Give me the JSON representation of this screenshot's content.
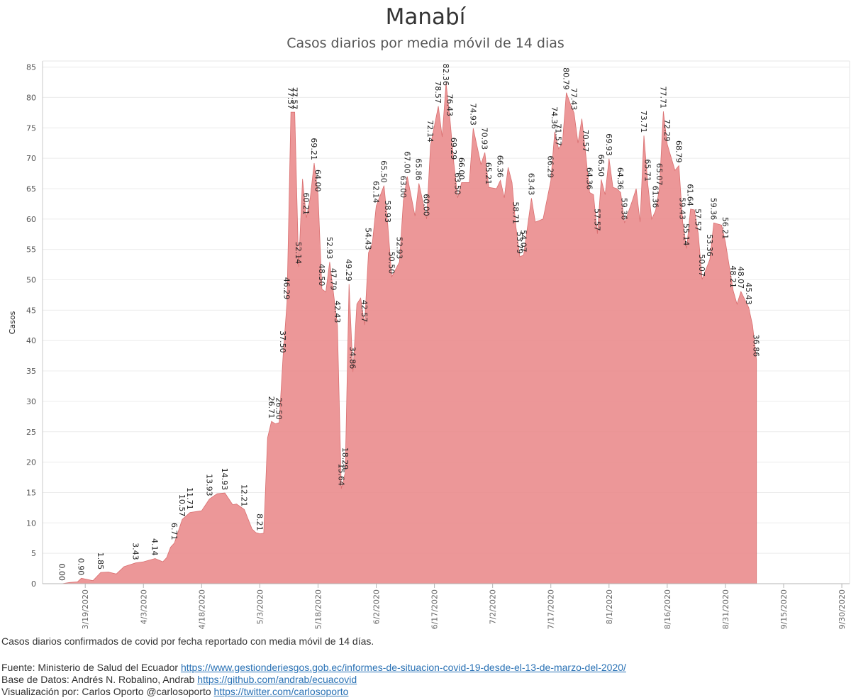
{
  "title": "Manabí",
  "subtitle": "Casos diarios por media móvil de 14 dias",
  "description": "Casos diarios confirmados de covid por fecha reportado con media móvil de 14 días.",
  "source": {
    "label": "Fuente: Ministerio de Salud del Ecuador ",
    "link": "https://www.gestionderiesgos.gob.ec/informes-de-situacion-covid-19-desde-el-13-de-marzo-del-2020/"
  },
  "database": {
    "label": "Base de Datos: Andrés N. Robalino, Andrab ",
    "link": "https://github.com/andrab/ecuacovid"
  },
  "visualization": {
    "label": "Visualización por: Carlos Oporto @carlosoporto ",
    "link": "https://twitter.com/carlosoporto"
  },
  "chart_data": {
    "type": "area",
    "ylabel": "Casos",
    "xlabel": "",
    "ylim": [
      0,
      86
    ],
    "xlim": [
      "2020-03-08",
      "2020-10-02"
    ],
    "yticks": [
      0,
      5,
      10,
      15,
      20,
      25,
      30,
      35,
      40,
      45,
      50,
      55,
      60,
      65,
      70,
      75,
      80,
      85
    ],
    "xticks": [
      "3/19/2020",
      "4/3/2020",
      "4/18/2020",
      "5/3/2020",
      "5/18/2020",
      "6/2/2020",
      "6/17/2020",
      "7/2/2020",
      "7/17/2020",
      "8/1/2020",
      "8/16/2020",
      "8/31/2020",
      "9/15/2020",
      "9/30/2020"
    ],
    "grid": true,
    "color": "#e9898a",
    "points": [
      [
        "2020-03-13",
        0.0
      ],
      [
        "2020-03-15",
        0.2
      ],
      [
        "2020-03-17",
        0.3
      ],
      [
        "2020-03-18",
        0.9
      ],
      [
        "2020-03-21",
        0.5
      ],
      [
        "2020-03-23",
        1.85
      ],
      [
        "2020-03-25",
        1.9
      ],
      [
        "2020-03-27",
        1.6
      ],
      [
        "2020-03-29",
        2.8
      ],
      [
        "2020-04-01",
        3.43
      ],
      [
        "2020-04-03",
        3.6
      ],
      [
        "2020-04-06",
        4.14
      ],
      [
        "2020-04-08",
        3.6
      ],
      [
        "2020-04-09",
        4.3
      ],
      [
        "2020-04-10",
        6.0
      ],
      [
        "2020-04-11",
        6.71
      ],
      [
        "2020-04-13",
        10.57
      ],
      [
        "2020-04-15",
        11.71
      ],
      [
        "2020-04-18",
        12.0
      ],
      [
        "2020-04-20",
        13.93
      ],
      [
        "2020-04-22",
        14.8
      ],
      [
        "2020-04-24",
        14.93
      ],
      [
        "2020-04-26",
        13.0
      ],
      [
        "2020-04-27",
        13.1
      ],
      [
        "2020-04-29",
        12.21
      ],
      [
        "2020-05-01",
        9.0
      ],
      [
        "2020-05-02",
        8.4
      ],
      [
        "2020-05-03",
        8.21
      ],
      [
        "2020-05-04",
        8.3
      ],
      [
        "2020-05-05",
        24.0
      ],
      [
        "2020-05-06",
        26.71
      ],
      [
        "2020-05-07",
        26.3
      ],
      [
        "2020-05-08",
        26.5
      ],
      [
        "2020-05-09",
        37.5
      ],
      [
        "2020-05-10",
        46.29
      ],
      [
        "2020-05-11",
        77.57
      ],
      [
        "2020-05-12",
        77.57
      ],
      [
        "2020-05-13",
        52.14
      ],
      [
        "2020-05-14",
        66.6
      ],
      [
        "2020-05-15",
        60.21
      ],
      [
        "2020-05-16",
        63.5
      ],
      [
        "2020-05-17",
        69.21
      ],
      [
        "2020-05-18",
        64.0
      ],
      [
        "2020-05-19",
        48.5
      ],
      [
        "2020-05-20",
        48.0
      ],
      [
        "2020-05-21",
        52.93
      ],
      [
        "2020-05-22",
        47.79
      ],
      [
        "2020-05-23",
        42.43
      ],
      [
        "2020-05-24",
        15.64
      ],
      [
        "2020-05-25",
        18.29
      ],
      [
        "2020-05-26",
        49.29
      ],
      [
        "2020-05-27",
        34.86
      ],
      [
        "2020-05-28",
        46.0
      ],
      [
        "2020-05-29",
        47.0
      ],
      [
        "2020-05-30",
        42.57
      ],
      [
        "2020-05-31",
        54.43
      ],
      [
        "2020-06-01",
        56.0
      ],
      [
        "2020-06-02",
        62.14
      ],
      [
        "2020-06-04",
        65.5
      ],
      [
        "2020-06-05",
        58.93
      ],
      [
        "2020-06-06",
        50.5
      ],
      [
        "2020-06-08",
        52.93
      ],
      [
        "2020-06-09",
        63.0
      ],
      [
        "2020-06-10",
        67.0
      ],
      [
        "2020-06-12",
        60.5
      ],
      [
        "2020-06-13",
        65.86
      ],
      [
        "2020-06-15",
        60.0
      ],
      [
        "2020-06-16",
        72.14
      ],
      [
        "2020-06-18",
        78.57
      ],
      [
        "2020-06-19",
        73.5
      ],
      [
        "2020-06-20",
        82.36
      ],
      [
        "2020-06-21",
        76.43
      ],
      [
        "2020-06-22",
        69.29
      ],
      [
        "2020-06-23",
        63.5
      ],
      [
        "2020-06-24",
        66.0
      ],
      [
        "2020-06-26",
        66.0
      ],
      [
        "2020-06-27",
        74.93
      ],
      [
        "2020-06-29",
        69.0
      ],
      [
        "2020-06-30",
        70.93
      ],
      [
        "2020-07-01",
        65.21
      ],
      [
        "2020-07-03",
        65.0
      ],
      [
        "2020-07-04",
        66.36
      ],
      [
        "2020-07-05",
        63.5
      ],
      [
        "2020-07-06",
        68.5
      ],
      [
        "2020-07-07",
        66.0
      ],
      [
        "2020-07-08",
        58.71
      ],
      [
        "2020-07-09",
        53.79
      ],
      [
        "2020-07-10",
        54.07
      ],
      [
        "2020-07-12",
        63.43
      ],
      [
        "2020-07-13",
        59.5
      ],
      [
        "2020-07-15",
        60.0
      ],
      [
        "2020-07-17",
        66.29
      ],
      [
        "2020-07-18",
        74.36
      ],
      [
        "2020-07-19",
        71.57
      ],
      [
        "2020-07-20",
        72.5
      ],
      [
        "2020-07-21",
        80.79
      ],
      [
        "2020-07-22",
        79.0
      ],
      [
        "2020-07-23",
        77.43
      ],
      [
        "2020-07-24",
        72.5
      ],
      [
        "2020-07-25",
        76.5
      ],
      [
        "2020-07-26",
        70.57
      ],
      [
        "2020-07-27",
        64.36
      ],
      [
        "2020-07-28",
        64.0
      ],
      [
        "2020-07-29",
        57.57
      ],
      [
        "2020-07-30",
        66.5
      ],
      [
        "2020-07-31",
        64.0
      ],
      [
        "2020-08-01",
        69.93
      ],
      [
        "2020-08-02",
        65.2
      ],
      [
        "2020-08-03",
        65.0
      ],
      [
        "2020-08-04",
        64.36
      ],
      [
        "2020-08-05",
        59.36
      ],
      [
        "2020-08-07",
        63.0
      ],
      [
        "2020-08-08",
        65.0
      ],
      [
        "2020-08-09",
        59.5
      ],
      [
        "2020-08-10",
        73.71
      ],
      [
        "2020-08-11",
        65.71
      ],
      [
        "2020-08-12",
        60.0
      ],
      [
        "2020-08-13",
        61.36
      ],
      [
        "2020-08-14",
        65.07
      ],
      [
        "2020-08-15",
        77.71
      ],
      [
        "2020-08-16",
        72.29
      ],
      [
        "2020-08-18",
        68.0
      ],
      [
        "2020-08-19",
        68.79
      ],
      [
        "2020-08-20",
        59.43
      ],
      [
        "2020-08-21",
        55.14
      ],
      [
        "2020-08-22",
        61.64
      ],
      [
        "2020-08-23",
        61.5
      ],
      [
        "2020-08-24",
        57.57
      ],
      [
        "2020-08-25",
        50.07
      ],
      [
        "2020-08-27",
        53.36
      ],
      [
        "2020-08-28",
        59.36
      ],
      [
        "2020-08-30",
        59.0
      ],
      [
        "2020-08-31",
        56.21
      ],
      [
        "2020-09-02",
        48.21
      ],
      [
        "2020-09-03",
        46.0
      ],
      [
        "2020-09-04",
        48.07
      ],
      [
        "2020-09-06",
        45.43
      ],
      [
        "2020-09-07",
        42.5
      ],
      [
        "2020-09-08",
        36.86
      ]
    ],
    "data_labels": [
      {
        "date": "2020-03-13",
        "text": "0.00"
      },
      {
        "date": "2020-03-18",
        "text": "0.90"
      },
      {
        "date": "2020-03-23",
        "text": "1.85"
      },
      {
        "date": "2020-04-01",
        "text": "3.43"
      },
      {
        "date": "2020-04-06",
        "text": "4.14"
      },
      {
        "date": "2020-04-11",
        "text": "6.71"
      },
      {
        "date": "2020-04-13",
        "text": "10.57"
      },
      {
        "date": "2020-04-15",
        "text": "11.71"
      },
      {
        "date": "2020-04-20",
        "text": "13.93"
      },
      {
        "date": "2020-04-24",
        "text": "14.93"
      },
      {
        "date": "2020-04-29",
        "text": "12.21"
      },
      {
        "date": "2020-05-03",
        "text": "8.21"
      },
      {
        "date": "2020-05-06",
        "text": "26.71"
      },
      {
        "date": "2020-05-08",
        "text": "26.50"
      },
      {
        "date": "2020-05-09",
        "text": "37.50"
      },
      {
        "date": "2020-05-10",
        "text": "46.29"
      },
      {
        "date": "2020-05-11",
        "text": "77.57"
      },
      {
        "date": "2020-05-12",
        "text": "77.57"
      },
      {
        "date": "2020-05-13",
        "text": "52.14"
      },
      {
        "date": "2020-05-15",
        "text": "60.21"
      },
      {
        "date": "2020-05-17",
        "text": "69.21"
      },
      {
        "date": "2020-05-18",
        "text": "64.00"
      },
      {
        "date": "2020-05-19",
        "text": "48.50"
      },
      {
        "date": "2020-05-21",
        "text": "52.93"
      },
      {
        "date": "2020-05-22",
        "text": "47.79"
      },
      {
        "date": "2020-05-23",
        "text": "42.43"
      },
      {
        "date": "2020-05-24",
        "text": "15.64"
      },
      {
        "date": "2020-05-25",
        "text": "18.29"
      },
      {
        "date": "2020-05-26",
        "text": "49.29"
      },
      {
        "date": "2020-05-27",
        "text": "34.86"
      },
      {
        "date": "2020-05-30",
        "text": "42.57"
      },
      {
        "date": "2020-05-31",
        "text": "54.43"
      },
      {
        "date": "2020-06-02",
        "text": "62.14"
      },
      {
        "date": "2020-06-04",
        "text": "65.50"
      },
      {
        "date": "2020-06-05",
        "text": "58.93"
      },
      {
        "date": "2020-06-06",
        "text": "50.50"
      },
      {
        "date": "2020-06-08",
        "text": "52.93"
      },
      {
        "date": "2020-06-09",
        "text": "63.00"
      },
      {
        "date": "2020-06-10",
        "text": "67.00"
      },
      {
        "date": "2020-06-13",
        "text": "65.86"
      },
      {
        "date": "2020-06-15",
        "text": "60.00"
      },
      {
        "date": "2020-06-16",
        "text": "72.14"
      },
      {
        "date": "2020-06-18",
        "text": "78.57"
      },
      {
        "date": "2020-06-20",
        "text": "82.36"
      },
      {
        "date": "2020-06-21",
        "text": "76.43"
      },
      {
        "date": "2020-06-22",
        "text": "69.29"
      },
      {
        "date": "2020-06-23",
        "text": "63.50"
      },
      {
        "date": "2020-06-24",
        "text": "66.00"
      },
      {
        "date": "2020-06-27",
        "text": "74.93"
      },
      {
        "date": "2020-06-30",
        "text": "70.93"
      },
      {
        "date": "2020-07-01",
        "text": "65.21"
      },
      {
        "date": "2020-07-04",
        "text": "66.36"
      },
      {
        "date": "2020-07-08",
        "text": "58.71"
      },
      {
        "date": "2020-07-09",
        "text": "53.79"
      },
      {
        "date": "2020-07-10",
        "text": "54.07"
      },
      {
        "date": "2020-07-12",
        "text": "63.43"
      },
      {
        "date": "2020-07-17",
        "text": "66.29"
      },
      {
        "date": "2020-07-18",
        "text": "74.36"
      },
      {
        "date": "2020-07-19",
        "text": "71.57"
      },
      {
        "date": "2020-07-21",
        "text": "80.79"
      },
      {
        "date": "2020-07-23",
        "text": "77.43"
      },
      {
        "date": "2020-07-26",
        "text": "70.57"
      },
      {
        "date": "2020-07-27",
        "text": "64.36"
      },
      {
        "date": "2020-07-29",
        "text": "57.57"
      },
      {
        "date": "2020-07-30",
        "text": "66.50"
      },
      {
        "date": "2020-08-01",
        "text": "69.93"
      },
      {
        "date": "2020-08-04",
        "text": "64.36"
      },
      {
        "date": "2020-08-05",
        "text": "59.36"
      },
      {
        "date": "2020-08-10",
        "text": "73.71"
      },
      {
        "date": "2020-08-11",
        "text": "65.71"
      },
      {
        "date": "2020-08-13",
        "text": "61.36"
      },
      {
        "date": "2020-08-14",
        "text": "65.07"
      },
      {
        "date": "2020-08-15",
        "text": "77.71"
      },
      {
        "date": "2020-08-16",
        "text": "72.29"
      },
      {
        "date": "2020-08-19",
        "text": "68.79"
      },
      {
        "date": "2020-08-20",
        "text": "59.43"
      },
      {
        "date": "2020-08-21",
        "text": "55.14"
      },
      {
        "date": "2020-08-22",
        "text": "61.64"
      },
      {
        "date": "2020-08-24",
        "text": "57.57"
      },
      {
        "date": "2020-08-25",
        "text": "50.07"
      },
      {
        "date": "2020-08-27",
        "text": "53.36"
      },
      {
        "date": "2020-08-28",
        "text": "59.36"
      },
      {
        "date": "2020-08-31",
        "text": "56.21"
      },
      {
        "date": "2020-09-02",
        "text": "48.21"
      },
      {
        "date": "2020-09-04",
        "text": "48.07"
      },
      {
        "date": "2020-09-06",
        "text": "45.43"
      },
      {
        "date": "2020-09-08",
        "text": "36.86"
      }
    ]
  }
}
